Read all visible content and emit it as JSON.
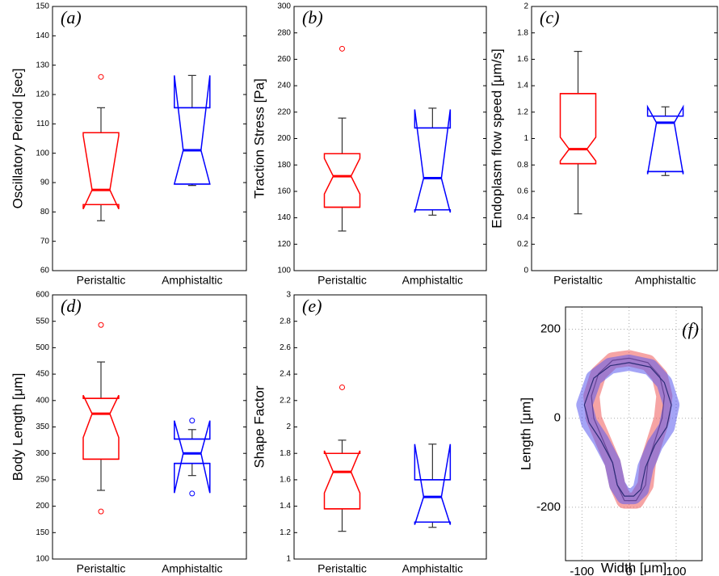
{
  "chart_data": [
    {
      "type": "box",
      "label": "(a)",
      "y_label": "Oscillatory Period [sec]",
      "categories": [
        "Peristaltic",
        "Amphistaltic"
      ],
      "ylim": [
        60,
        150
      ],
      "yticks": [
        60,
        70,
        80,
        90,
        100,
        110,
        120,
        130,
        140,
        150
      ],
      "boxes": [
        {
          "color": "#ff0000",
          "whisker": [
            77,
            115.5
          ],
          "q1": 82.5,
          "median": 87.5,
          "q3": 107,
          "notch": [
            81,
            106
          ],
          "outliers": [
            126
          ]
        },
        {
          "color": "#0000ff",
          "whisker": [
            89,
            126.5
          ],
          "q1": 89.5,
          "median": 101,
          "q3": 115.5,
          "notch": [
            89.5,
            126.5
          ],
          "outliers": []
        }
      ]
    },
    {
      "type": "box",
      "label": "(b)",
      "y_label": "Traction Stress [Pa]",
      "categories": [
        "Peristaltic",
        "Amphistaltic"
      ],
      "ylim": [
        100,
        300
      ],
      "yticks": [
        100,
        120,
        140,
        160,
        180,
        200,
        220,
        240,
        260,
        280,
        300
      ],
      "boxes": [
        {
          "color": "#ff0000",
          "whisker": [
            130,
            215.5
          ],
          "q1": 148,
          "median": 171.5,
          "q3": 188.5,
          "notch": [
            158,
            185
          ],
          "outliers": [
            268
          ]
        },
        {
          "color": "#0000ff",
          "whisker": [
            142,
            223
          ],
          "q1": 146,
          "median": 170,
          "q3": 208,
          "notch": [
            144,
            222
          ],
          "outliers": []
        }
      ]
    },
    {
      "type": "box",
      "label": "(c)",
      "y_label": "Endoplasm flow speed [μm/s]",
      "categories": [
        "Peristaltic",
        "Amphistaltic"
      ],
      "ylim": [
        0,
        2
      ],
      "yticks": [
        0,
        0.2,
        0.4,
        0.6,
        0.8,
        1,
        1.2,
        1.4,
        1.6,
        1.8,
        2
      ],
      "boxes": [
        {
          "color": "#ff0000",
          "whisker": [
            0.43,
            1.66
          ],
          "q1": 0.81,
          "median": 0.92,
          "q3": 1.34,
          "notch": [
            0.83,
            1.01
          ],
          "outliers": []
        },
        {
          "color": "#0000ff",
          "whisker": [
            0.72,
            1.24
          ],
          "q1": 0.75,
          "median": 1.12,
          "q3": 1.17,
          "notch": [
            0.73,
            1.24
          ],
          "outliers": []
        }
      ]
    },
    {
      "type": "box",
      "label": "(d)",
      "y_label": "Body Length [μm]",
      "categories": [
        "Peristaltic",
        "Amphistaltic"
      ],
      "ylim": [
        100,
        600
      ],
      "yticks": [
        100,
        150,
        200,
        250,
        300,
        350,
        400,
        450,
        500,
        550,
        600
      ],
      "boxes": [
        {
          "color": "#ff0000",
          "whisker": [
            230,
            473
          ],
          "q1": 289,
          "median": 375,
          "q3": 404,
          "notch": [
            330,
            410
          ],
          "outliers": [
            190,
            543
          ]
        },
        {
          "color": "#0000ff",
          "whisker": [
            258,
            345
          ],
          "q1": 281,
          "median": 300,
          "q3": 327,
          "notch": [
            225,
            362
          ],
          "outliers": [
            362,
            224
          ]
        }
      ]
    },
    {
      "type": "box",
      "label": "(e)",
      "y_label": "Shape Factor",
      "categories": [
        "Peristaltic",
        "Amphistaltic"
      ],
      "ylim": [
        1,
        3
      ],
      "yticks": [
        1,
        1.2,
        1.4,
        1.6,
        1.8,
        2,
        2.2,
        2.4,
        2.6,
        2.8,
        3
      ],
      "boxes": [
        {
          "color": "#ff0000",
          "whisker": [
            1.21,
            1.9
          ],
          "q1": 1.38,
          "median": 1.66,
          "q3": 1.8,
          "notch": [
            1.5,
            1.82
          ],
          "outliers": [
            2.3
          ]
        },
        {
          "color": "#0000ff",
          "whisker": [
            1.24,
            1.87
          ],
          "q1": 1.28,
          "median": 1.47,
          "q3": 1.6,
          "notch": [
            1.26,
            1.87
          ],
          "outliers": []
        }
      ]
    },
    {
      "type": "outline",
      "label": "(f)",
      "x_label": "Width [μm]",
      "y_label": "Length [μm]",
      "xlim": [
        -135,
        155
      ],
      "ylim": [
        -320,
        250
      ],
      "xticks": [
        -100,
        0,
        100
      ],
      "yticks": [
        -200,
        0,
        200
      ],
      "grid": true,
      "series": [
        {
          "color": "#ee5a5a",
          "x": [
            0,
            40,
            65,
            75,
            70,
            55,
            40,
            35,
            15,
            -10,
            -25,
            -35,
            -55,
            -75,
            -80,
            -65,
            -35
          ],
          "y": [
            135,
            125,
            95,
            50,
            0,
            -50,
            -100,
            -150,
            -185,
            -185,
            -150,
            -100,
            -50,
            0,
            50,
            100,
            130
          ]
        },
        {
          "color": "#5a5aee",
          "x": [
            0,
            45,
            75,
            90,
            80,
            55,
            35,
            25,
            10,
            -10,
            -25,
            -35,
            -60,
            -85,
            -95,
            -75,
            -40
          ],
          "y": [
            125,
            115,
            80,
            30,
            -20,
            -60,
            -110,
            -160,
            -175,
            -175,
            -150,
            -100,
            -50,
            -10,
            30,
            90,
            118
          ]
        }
      ]
    }
  ]
}
